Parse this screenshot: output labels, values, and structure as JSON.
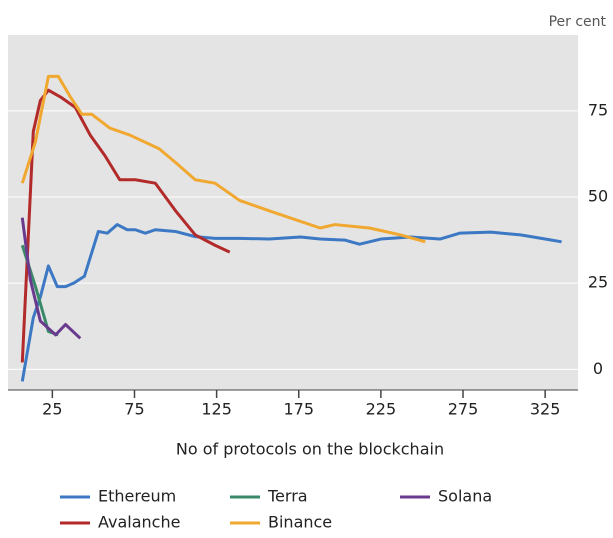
{
  "chart_data": {
    "type": "line",
    "y_unit_label": "Per cent",
    "x_label": "No of protocols on the blockchain",
    "xlim": [
      -2,
      345
    ],
    "xticks": [
      25,
      75,
      125,
      175,
      225,
      275,
      325
    ],
    "ylim": [
      -6,
      97
    ],
    "yticks": [
      0,
      25,
      50,
      75
    ],
    "grid": true,
    "legend": "bottom",
    "series": [
      {
        "name": "Ethereum",
        "color": "#3c78c3",
        "x": [
          6.7,
          13.4,
          17.7,
          22.6,
          28,
          33,
          38,
          44.5,
          53,
          58.5,
          64.5,
          70.6,
          75.5,
          81.6,
          87.7,
          99.9,
          112,
          124,
          139,
          157,
          176,
          188,
          203,
          212,
          225,
          243,
          261,
          273,
          292,
          310,
          325,
          335
        ],
        "values": [
          -3.5,
          15,
          21,
          30,
          24,
          24,
          25,
          27,
          40,
          39.5,
          42,
          40.5,
          40.5,
          39.5,
          40.5,
          40,
          38.5,
          38,
          38,
          37.8,
          38.4,
          37.8,
          37.5,
          36.3,
          37.8,
          38.4,
          37.8,
          39.5,
          39.8,
          39,
          37.8,
          37
        ]
      },
      {
        "name": "Avalanche",
        "color": "#b22a2a",
        "x": [
          6.7,
          13.4,
          17.7,
          22.6,
          30,
          39,
          48,
          57,
          66,
          75.5,
          87.7,
          100,
          112,
          124,
          133
        ],
        "values": [
          2,
          69,
          78,
          81,
          79,
          76,
          68,
          62,
          55,
          55,
          54,
          46,
          39,
          36,
          34
        ]
      },
      {
        "name": "Terra",
        "color": "#3a8a6a",
        "x": [
          6.7,
          14.7,
          22.6,
          28.6
        ],
        "values": [
          36,
          24,
          11,
          10
        ]
      },
      {
        "name": "Binance",
        "color": "#f0a830",
        "x": [
          6.7,
          14.7,
          22.6,
          28.6,
          36,
          43,
          49,
          60,
          72,
          90,
          100,
          112,
          124,
          139,
          157,
          188,
          197,
          218,
          237,
          252
        ],
        "values": [
          54,
          66,
          85,
          85,
          79,
          74,
          74,
          70,
          68,
          64,
          60,
          55,
          54,
          49,
          46,
          41,
          42,
          41,
          39,
          37
        ]
      },
      {
        "name": "Solana",
        "color": "#6a3a8f",
        "x": [
          6.7,
          11.6,
          17.7,
          27,
          33,
          42
        ],
        "values": [
          44,
          26,
          14,
          10,
          13,
          9
        ]
      }
    ]
  }
}
